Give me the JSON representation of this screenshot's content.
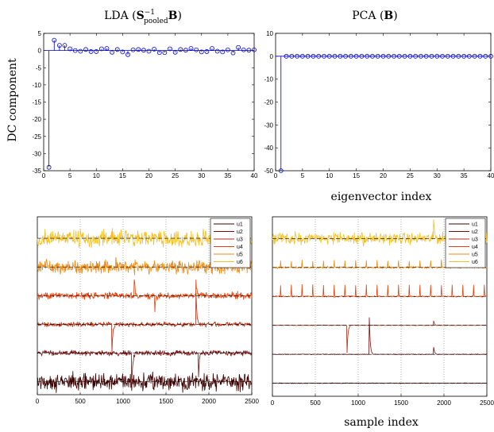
{
  "figure": {
    "titles": {
      "left_prefix": "LDA (",
      "left_S": "S",
      "left_sup": "−1",
      "left_sub": "pooled",
      "left_B": "B",
      "left_suffix": ")",
      "right_prefix": "PCA (",
      "right_B": "B",
      "right_suffix": ")"
    },
    "ylabel_top": "DC component",
    "xlabel_top": "eigenvector index",
    "xlabel_bottom": "sample index"
  },
  "colors": {
    "stem": "#0000cc",
    "u1": "#3d0000",
    "u2": "#7a0f0f",
    "u3": "#b52a10",
    "u4": "#e8400a",
    "u5": "#f08a15",
    "u6": "#f5c026"
  },
  "chart_data": [
    {
      "type": "scatter",
      "style": "stem",
      "panel": "top-left",
      "title": "LDA (S−1pooled B)",
      "xlabel": "",
      "ylabel": "DC component",
      "xlim": [
        0,
        40
      ],
      "ylim": [
        -35,
        5
      ],
      "xticks": [
        0,
        5,
        10,
        15,
        20,
        25,
        30,
        35,
        40
      ],
      "yticks": [
        -35,
        -30,
        -25,
        -20,
        -15,
        -10,
        -5,
        0,
        5
      ],
      "x": [
        1,
        2,
        3,
        4,
        5,
        6,
        7,
        8,
        9,
        10,
        11,
        12,
        13,
        14,
        15,
        16,
        17,
        18,
        19,
        20,
        21,
        22,
        23,
        24,
        25,
        26,
        27,
        28,
        29,
        30,
        31,
        32,
        33,
        34,
        35,
        36,
        37,
        38,
        39,
        40
      ],
      "values": [
        -34,
        3,
        1.5,
        1.5,
        0.5,
        0,
        -0.2,
        0.3,
        -0.3,
        -0.3,
        0.5,
        0.6,
        -0.5,
        0.3,
        -0.4,
        -1.2,
        0.2,
        0.3,
        0.1,
        -0.2,
        0.4,
        -0.6,
        -0.6,
        0.5,
        -0.5,
        0.3,
        0.1,
        0.6,
        0.2,
        -0.4,
        -0.3,
        0.6,
        -0.2,
        -0.4,
        0.2,
        -0.7,
        0.9,
        0.2,
        0.1,
        0.2
      ],
      "grid": false
    },
    {
      "type": "scatter",
      "style": "stem",
      "panel": "top-right",
      "title": "PCA (B)",
      "xlabel": "eigenvector index",
      "ylabel": "",
      "xlim": [
        0,
        40
      ],
      "ylim": [
        -50,
        10
      ],
      "xticks": [
        0,
        5,
        10,
        15,
        20,
        25,
        30,
        35,
        40
      ],
      "yticks": [
        -50,
        -40,
        -30,
        -20,
        -10,
        0,
        10
      ],
      "x": [
        1,
        2,
        3,
        4,
        5,
        6,
        7,
        8,
        9,
        10,
        11,
        12,
        13,
        14,
        15,
        16,
        17,
        18,
        19,
        20,
        21,
        22,
        23,
        24,
        25,
        26,
        27,
        28,
        29,
        30,
        31,
        32,
        33,
        34,
        35,
        36,
        37,
        38,
        39,
        40
      ],
      "values": [
        -50,
        0,
        0,
        0,
        0,
        0,
        0,
        0,
        0,
        0,
        0,
        0,
        0,
        0,
        0,
        0,
        0,
        0,
        0,
        0,
        0,
        0,
        0,
        0,
        0,
        0,
        0,
        0,
        0,
        0,
        0,
        0,
        0,
        0,
        0,
        0,
        0,
        0,
        0,
        0
      ],
      "grid": false
    },
    {
      "type": "line",
      "panel": "bottom-left",
      "xlabel": "",
      "xlim": [
        0,
        2500
      ],
      "xticks": [
        0,
        500,
        1000,
        1500,
        2000,
        2500
      ],
      "grid": "x-dotted",
      "legend": "top-right",
      "series": [
        {
          "name": "u1",
          "offset": 0,
          "noise": 3.0,
          "events": []
        },
        {
          "name": "u2",
          "offset": 1,
          "noise": 0.9,
          "events": [
            {
              "x": 1100,
              "amp": -4
            },
            {
              "x": 1880,
              "amp": -2.5
            }
          ]
        },
        {
          "name": "u3",
          "offset": 2,
          "noise": 0.8,
          "events": [
            {
              "x": 870,
              "amp": -3
            },
            {
              "x": 1850,
              "amp": 3.5
            }
          ]
        },
        {
          "name": "u4",
          "offset": 3,
          "noise": 1.2,
          "events": [
            {
              "x": 1130,
              "amp": 2
            },
            {
              "x": 1370,
              "amp": -1.5
            },
            {
              "x": 1850,
              "amp": 1.5
            }
          ]
        },
        {
          "name": "u5",
          "offset": 4,
          "noise": 2.5,
          "events": []
        },
        {
          "name": "u6",
          "offset": 5,
          "noise": 3.0,
          "events": []
        }
      ]
    },
    {
      "type": "line",
      "panel": "bottom-right",
      "xlabel": "sample index",
      "xlim": [
        0,
        2500
      ],
      "xticks": [
        0,
        500,
        1000,
        1500,
        2000,
        2500
      ],
      "grid": "x-dotted",
      "legend": "top-right",
      "series": [
        {
          "name": "u1",
          "offset": 0,
          "noise": 0.1,
          "events": []
        },
        {
          "name": "u2",
          "offset": 1,
          "noise": 0.1,
          "events": [
            {
              "x": 1130,
              "amp": 4
            },
            {
              "x": 1880,
              "amp": 0.8
            }
          ]
        },
        {
          "name": "u3",
          "offset": 2,
          "noise": 0.1,
          "events": [
            {
              "x": 870,
              "amp": -3
            },
            {
              "x": 1880,
              "amp": 0.5
            }
          ]
        },
        {
          "name": "u4",
          "offset": 3,
          "noise": 0.2,
          "events": "periodic-up"
        },
        {
          "name": "u5",
          "offset": 4,
          "noise": 0.3,
          "events": "periodic-up-small"
        },
        {
          "name": "u6",
          "offset": 5,
          "noise": 2.0,
          "events": [
            {
              "x": 1880,
              "amp": 2
            }
          ]
        }
      ]
    }
  ]
}
